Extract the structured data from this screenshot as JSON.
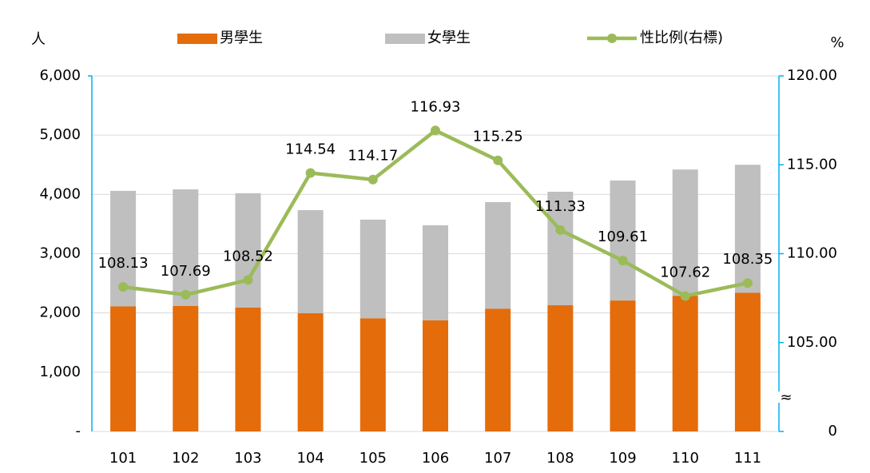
{
  "chart_data": {
    "type": "bar_line",
    "y_label": "人",
    "y2_label": "%",
    "categories": [
      "101",
      "102",
      "103",
      "104",
      "105",
      "106",
      "107",
      "108",
      "109",
      "110",
      "111"
    ],
    "series": [
      {
        "name": "男學生",
        "color": "#e46c0a",
        "type": "bar",
        "values": [
          2110,
          2120,
          2090,
          1995,
          1910,
          1875,
          2070,
          2130,
          2210,
          2290,
          2340
        ]
      },
      {
        "name": "女學生",
        "color": "#bfbfbf",
        "type": "bar",
        "values": [
          1950,
          1965,
          1930,
          1740,
          1665,
          1605,
          1800,
          1915,
          2025,
          2130,
          2160
        ]
      },
      {
        "name": "性比例(右標)",
        "color": "#9bbb59",
        "type": "line",
        "axis": "y2",
        "values": [
          108.13,
          107.69,
          108.52,
          114.54,
          114.17,
          116.93,
          115.25,
          111.33,
          109.61,
          107.62,
          108.35
        ]
      }
    ],
    "ylim": [
      0,
      6000
    ],
    "yticks": [
      {
        "value": 0,
        "label": "-"
      },
      {
        "value": 1000,
        "label": "1,000"
      },
      {
        "value": 2000,
        "label": "2,000"
      },
      {
        "value": 3000,
        "label": "3,000"
      },
      {
        "value": 4000,
        "label": "4,000"
      },
      {
        "value": 5000,
        "label": "5,000"
      },
      {
        "value": 6000,
        "label": "6,000"
      }
    ],
    "y2lim": [
      100,
      120
    ],
    "y2ticks": [
      0,
      {
        "value": 105,
        "label": "105.00"
      },
      {
        "value": 110,
        "label": "110.00"
      },
      {
        "value": 115,
        "label": "115.00"
      },
      {
        "value": 120,
        "label": "120.00"
      }
    ],
    "y2_axis_break": true,
    "grid": true,
    "stacked": true,
    "legend": "top"
  }
}
